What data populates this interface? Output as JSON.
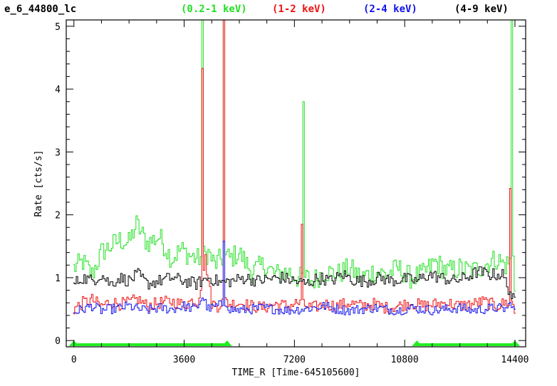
{
  "header": {
    "source": "e_6_44800_lc",
    "bands": [
      {
        "label": "(0.2-1 keV)",
        "color": "#22e022"
      },
      {
        "label": "(1-2 keV)",
        "color": "#ee1111"
      },
      {
        "label": "(2-4 keV)",
        "color": "#1111ee"
      },
      {
        "label": "(4-9 keV)",
        "color": "#000000"
      }
    ]
  },
  "chart_data": {
    "type": "line",
    "title": "e_6_44800_lc",
    "xlabel": "TIME_R [Time-645105600]",
    "ylabel": "Rate [cts/s]",
    "xlim": [
      -250,
      14750
    ],
    "ylim": [
      -0.1,
      5.1
    ],
    "x_ticks": [
      "0",
      "3600",
      "7200",
      "10800",
      "14400"
    ],
    "x_tick_values": [
      0,
      3600,
      7200,
      10800,
      14400
    ],
    "y_ticks": [
      "0",
      "1",
      "2",
      "3",
      "4",
      "5"
    ],
    "y_tick_values": [
      0,
      1,
      2,
      3,
      4,
      5
    ],
    "step": true,
    "bin_width": 50,
    "gti": [
      [
        0,
        5000
      ],
      [
        11200,
        14400
      ]
    ],
    "gti_color": "#22ee22",
    "series": [
      {
        "name": "(0.2-1 keV)",
        "color": "#22e022",
        "x": [
          0,
          300,
          600,
          900,
          1200,
          1500,
          1800,
          2050,
          2400,
          2800,
          3200,
          3500,
          3800,
          4050,
          4200,
          4400,
          4600,
          4800,
          4900,
          5000,
          5100,
          5400,
          5800,
          6200,
          6600,
          7000,
          7300,
          7500,
          7600,
          7800,
          8200,
          8600,
          9000,
          9400,
          9800,
          10200,
          10600,
          11000,
          11400,
          11800,
          12200,
          12600,
          13000,
          13400,
          13800,
          14100,
          14300,
          14350,
          14400
        ],
        "y": [
          1.15,
          1.25,
          1.05,
          1.4,
          1.5,
          1.6,
          1.55,
          1.85,
          1.55,
          1.65,
          1.3,
          1.45,
          1.35,
          1.3,
          5.1,
          1.4,
          1.2,
          1.3,
          5.1,
          1.35,
          1.3,
          1.4,
          1.1,
          1.2,
          1.05,
          1.1,
          1.0,
          3.8,
          1.0,
          0.95,
          1.1,
          1.05,
          1.15,
          1.0,
          1.1,
          1.05,
          1.15,
          1.0,
          1.05,
          1.25,
          1.1,
          1.15,
          1.1,
          1.2,
          1.3,
          1.2,
          5.1,
          1.3,
          0.85
        ]
      },
      {
        "name": "(1-2 keV)",
        "color": "#ee1111",
        "x": [
          0,
          300,
          600,
          900,
          1200,
          1500,
          1800,
          2100,
          2400,
          2800,
          3200,
          3600,
          3900,
          4050,
          4200,
          4300,
          4500,
          4700,
          4850,
          4900,
          5000,
          5100,
          5400,
          5800,
          6200,
          6600,
          7000,
          7300,
          7450,
          7550,
          7800,
          8200,
          8600,
          9000,
          9400,
          9800,
          10200,
          10600,
          11000,
          11400,
          11800,
          12200,
          12600,
          13000,
          13400,
          13800,
          14100,
          14250,
          14300,
          14350,
          14400
        ],
        "y": [
          0.5,
          0.6,
          0.65,
          0.55,
          0.62,
          0.58,
          0.6,
          0.66,
          0.55,
          0.6,
          0.62,
          0.57,
          0.64,
          0.6,
          4.33,
          1.3,
          0.6,
          0.55,
          0.62,
          5.1,
          0.62,
          0.58,
          0.6,
          0.55,
          0.52,
          0.58,
          0.55,
          0.6,
          1.85,
          0.55,
          0.52,
          0.58,
          0.55,
          0.6,
          0.55,
          0.58,
          0.52,
          0.55,
          0.6,
          0.55,
          0.58,
          0.6,
          0.55,
          0.58,
          0.62,
          0.55,
          0.6,
          2.42,
          0.6,
          0.55,
          0.45
        ]
      },
      {
        "name": "(2-4 keV)",
        "color": "#1111ee",
        "x": [
          0,
          300,
          600,
          900,
          1200,
          1500,
          1800,
          2100,
          2400,
          2800,
          3200,
          3600,
          4000,
          4200,
          4400,
          4700,
          4900,
          5000,
          5100,
          5400,
          5800,
          6200,
          6600,
          7000,
          7400,
          7800,
          8200,
          8600,
          9000,
          9400,
          9800,
          10200,
          10600,
          11000,
          11400,
          11800,
          12200,
          12600,
          13000,
          13400,
          13800,
          14100,
          14300,
          14400
        ],
        "y": [
          0.45,
          0.5,
          0.55,
          0.48,
          0.5,
          0.52,
          0.55,
          0.5,
          0.48,
          0.52,
          0.5,
          0.55,
          0.5,
          0.7,
          0.5,
          0.55,
          1.58,
          0.6,
          0.5,
          0.48,
          0.5,
          0.52,
          0.5,
          0.48,
          0.5,
          0.52,
          0.55,
          0.5,
          0.48,
          0.5,
          0.52,
          0.5,
          0.48,
          0.52,
          0.5,
          0.48,
          0.5,
          0.52,
          0.48,
          0.5,
          0.52,
          0.5,
          0.6,
          0.45
        ]
      },
      {
        "name": "(4-9 keV)",
        "color": "#000000",
        "x": [
          0,
          300,
          600,
          900,
          1200,
          1500,
          1800,
          2100,
          2400,
          2800,
          3200,
          3600,
          4000,
          4400,
          4800,
          5200,
          5600,
          6000,
          6400,
          6800,
          7200,
          7600,
          8000,
          8400,
          8800,
          9200,
          9600,
          10000,
          10400,
          10800,
          11200,
          11600,
          12000,
          12400,
          12800,
          13200,
          13600,
          14000,
          14400
        ],
        "y": [
          0.9,
          1.0,
          0.95,
          1.05,
          0.9,
          1.0,
          0.95,
          1.05,
          0.9,
          0.95,
          1.0,
          0.95,
          0.9,
          1.0,
          0.92,
          0.95,
          1.0,
          0.95,
          0.98,
          1.0,
          0.95,
          0.9,
          1.0,
          0.95,
          1.05,
          0.95,
          0.95,
          1.0,
          0.95,
          0.98,
          0.95,
          1.05,
          1.0,
          0.95,
          1.0,
          1.1,
          1.05,
          1.05,
          0.6
        ]
      }
    ]
  }
}
